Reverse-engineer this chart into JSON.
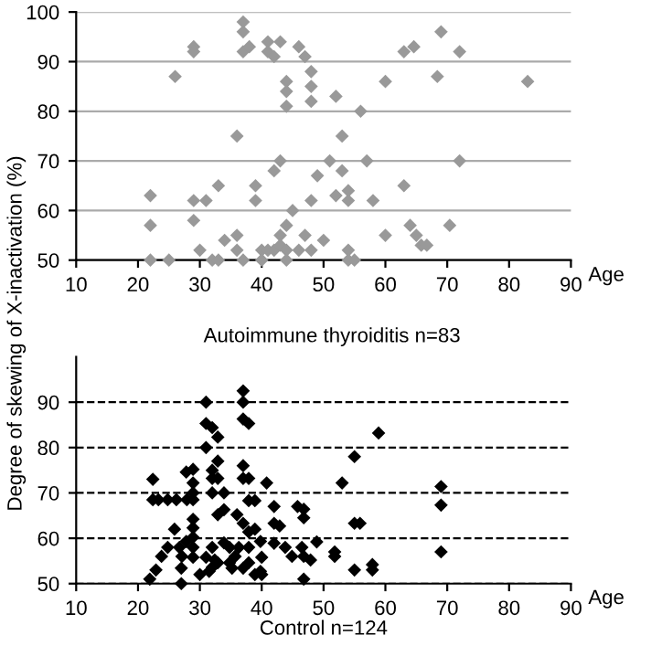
{
  "chart_data": [
    {
      "type": "scatter",
      "xlabel": "Age",
      "ylabel": "Degree of skewing of X-inactivation (%)",
      "annotations": [
        "Autoimmune thyroiditis n=83"
      ],
      "xlim": [
        10,
        90
      ],
      "xticks": [
        10,
        20,
        30,
        40,
        50,
        60,
        70,
        80,
        90
      ],
      "ylim": [
        50,
        100
      ],
      "yticks": [
        50,
        60,
        70,
        80,
        90,
        100
      ],
      "grid": "y",
      "line_style": "solid",
      "marker": "diamond",
      "series": [
        {
          "color": "#999999",
          "x": [
            37,
            37,
            29,
            29,
            37,
            38,
            41,
            41,
            43,
            42,
            46,
            47,
            69,
            64.6,
            63,
            72,
            26,
            44,
            44,
            44,
            48,
            48,
            48,
            52,
            56,
            60,
            68.4,
            83,
            36,
            53,
            43,
            42,
            51,
            57,
            72,
            49,
            53,
            33,
            39,
            63,
            22,
            29,
            31,
            39,
            48,
            52,
            54,
            54,
            58,
            45,
            22,
            29,
            44,
            64,
            70.4,
            36,
            43,
            47,
            60,
            65,
            34,
            50,
            65.8,
            66.7,
            30,
            36,
            40,
            41,
            42,
            43,
            44,
            46,
            48,
            54,
            22,
            25,
            32,
            33,
            37,
            40,
            44,
            54,
            55
          ],
          "values": [
            98,
            96,
            93,
            92,
            92,
            93,
            94,
            92,
            94,
            91,
            93,
            91,
            96,
            93,
            92,
            92,
            87,
            86,
            84,
            81,
            88,
            85,
            82,
            83,
            80,
            86,
            87,
            86,
            75,
            75,
            70,
            68,
            70,
            70,
            70,
            67,
            68,
            65,
            65,
            65,
            63,
            62,
            62,
            62,
            62,
            63,
            64,
            62,
            62,
            60,
            57,
            58,
            57,
            57,
            57,
            55,
            55,
            55,
            55,
            55,
            54,
            54,
            53,
            53,
            52,
            52,
            52,
            52,
            52,
            53,
            52,
            52,
            52,
            52,
            50,
            50,
            50,
            50,
            50,
            50,
            50,
            50,
            50
          ]
        }
      ]
    },
    {
      "type": "scatter",
      "xlabel": "Age",
      "annotations": [
        "Control n=124"
      ],
      "xlim": [
        10,
        90
      ],
      "xticks": [
        10,
        20,
        30,
        40,
        50,
        60,
        70,
        80,
        90
      ],
      "ylim": [
        50,
        100
      ],
      "yticks": [
        50,
        60,
        70,
        80,
        90
      ],
      "grid": "y",
      "line_style": "dashed",
      "marker": "diamond",
      "series": [
        {
          "color": "#000000",
          "x": [
            21.9,
            22.9,
            23.8,
            24.8,
            22.4,
            22.4,
            23.3,
            26.2,
            25.9,
            27,
            27,
            27.1,
            27.8,
            27.8,
            28.9,
            28.9,
            28.9,
            28.9,
            28.9,
            28.9,
            28.9,
            28.9,
            27.9,
            28.9,
            30,
            31,
            31,
            32,
            32.9,
            31,
            32,
            32,
            32.9,
            32.9,
            32,
            33.9,
            33.9,
            32.9,
            31,
            32,
            32,
            32.9,
            33.9,
            34.8,
            34.8,
            35.7,
            36,
            37,
            37,
            37,
            37.9,
            37,
            37,
            37.9,
            37.9,
            38.9,
            37,
            37.9,
            38.9,
            37.9,
            37.9,
            37,
            39.8,
            40,
            39.8,
            38.9,
            40.8,
            42,
            42,
            42.9,
            42,
            43.8,
            44.9,
            46.5,
            45.8,
            46.8,
            46.8,
            46.8,
            46.8,
            47.9,
            48.9,
            51.8,
            51.8,
            53,
            55,
            55,
            55,
            55.9,
            57.9,
            57.9,
            58.9,
            69,
            69,
            69,
            24.8,
            40,
            31.5,
            32.4,
            35.2,
            36.3,
            26.7
          ],
          "values": [
            51,
            53,
            56,
            58,
            73,
            68.5,
            68.5,
            68.5,
            62,
            50,
            53.4,
            56,
            59.3,
            74.6,
            75.2,
            72.2,
            70,
            68.5,
            64.2,
            62.3,
            60.2,
            58,
            68.5,
            55.8,
            52,
            90,
            85.3,
            84.4,
            82.3,
            80,
            75,
            73.2,
            73.2,
            77,
            70,
            70,
            66.3,
            65.2,
            55.8,
            58,
            53.6,
            54.6,
            59,
            54.6,
            58,
            56,
            65.2,
            92.5,
            90,
            86.3,
            85.3,
            76,
            73.2,
            73.2,
            68.3,
            68.3,
            63.3,
            61.4,
            62,
            58,
            54.6,
            53.4,
            59.3,
            55.8,
            52.7,
            52,
            72.2,
            67,
            63.3,
            62.7,
            58.9,
            58,
            56,
            58,
            67,
            66.4,
            64.5,
            56,
            51,
            55.2,
            59.2,
            57,
            56,
            72.2,
            78,
            53,
            63.3,
            63.3,
            54.2,
            53,
            83.2,
            71.4,
            67.3,
            57,
            68.5,
            52,
            52.7,
            55.2,
            53.4,
            58,
            58
          ]
        }
      ]
    }
  ]
}
